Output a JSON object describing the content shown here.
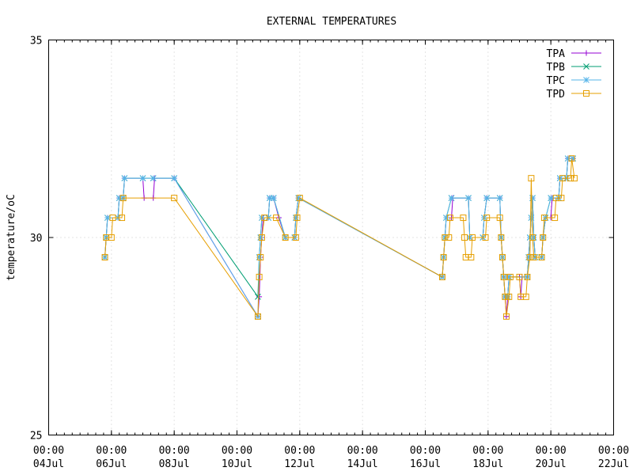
{
  "chart_data": {
    "type": "line",
    "title": "EXTERNAL TEMPERATURES",
    "ylabel": "temperature/oC",
    "xlabel": "",
    "ylim": [
      25,
      35
    ],
    "xlim": [
      "2024-07-04T00:00",
      "2024-07-22T00:00"
    ],
    "yticks": [
      {
        "value": 25,
        "label": "25"
      },
      {
        "value": 30,
        "label": "30"
      },
      {
        "value": 35,
        "label": "35"
      }
    ],
    "xticks": [
      {
        "value": "2024-07-04T00:00",
        "time": "00:00",
        "date": "04Jul"
      },
      {
        "value": "2024-07-06T00:00",
        "time": "00:00",
        "date": "06Jul"
      },
      {
        "value": "2024-07-08T00:00",
        "time": "00:00",
        "date": "08Jul"
      },
      {
        "value": "2024-07-10T00:00",
        "time": "00:00",
        "date": "10Jul"
      },
      {
        "value": "2024-07-12T00:00",
        "time": "00:00",
        "date": "12Jul"
      },
      {
        "value": "2024-07-14T00:00",
        "time": "00:00",
        "date": "14Jul"
      },
      {
        "value": "2024-07-16T00:00",
        "time": "00:00",
        "date": "16Jul"
      },
      {
        "value": "2024-07-18T00:00",
        "time": "00:00",
        "date": "18Jul"
      },
      {
        "value": "2024-07-20T00:00",
        "time": "00:00",
        "date": "20Jul"
      },
      {
        "value": "2024-07-22T00:00",
        "time": "00:00",
        "date": "22Jul"
      }
    ],
    "grid": true,
    "legend_position": "top-right",
    "series": [
      {
        "name": "TPA",
        "color": "#9400d3",
        "marker": "plus",
        "points": [
          [
            "2024-07-05T19:00",
            29.5
          ],
          [
            "2024-07-05T20:00",
            30.0
          ],
          [
            "2024-07-05T21:00",
            30.5
          ],
          [
            "2024-07-06T05:00",
            30.5
          ],
          [
            "2024-07-06T06:00",
            31.0
          ],
          [
            "2024-07-06T09:00",
            31.0
          ],
          [
            "2024-07-06T10:00",
            31.5
          ],
          [
            "2024-07-07T00:00",
            31.5
          ],
          [
            "2024-07-07T01:00",
            31.0
          ],
          [
            "2024-07-07T08:00",
            31.0
          ],
          [
            "2024-07-07T09:00",
            31.5
          ],
          [
            "2024-07-08T00:00",
            31.5
          ],
          [
            "2024-07-10T16:00",
            28.0
          ],
          [
            "2024-07-10T17:00",
            28.5
          ],
          [
            "2024-07-10T18:00",
            29.5
          ],
          [
            "2024-07-10T19:00",
            30.0
          ],
          [
            "2024-07-10T20:00",
            30.5
          ],
          [
            "2024-07-11T00:00",
            30.5
          ],
          [
            "2024-07-11T01:00",
            31.0
          ],
          [
            "2024-07-11T04:00",
            31.0
          ],
          [
            "2024-07-11T08:00",
            30.5
          ],
          [
            "2024-07-11T13:00",
            30.0
          ],
          [
            "2024-07-11T20:00",
            30.0
          ],
          [
            "2024-07-11T21:00",
            30.5
          ],
          [
            "2024-07-11T23:00",
            31.0
          ],
          [
            "2024-07-16T13:00",
            29.0
          ],
          [
            "2024-07-16T14:00",
            29.5
          ],
          [
            "2024-07-16T15:00",
            30.0
          ],
          [
            "2024-07-16T16:00",
            30.5
          ],
          [
            "2024-07-16T20:00",
            30.5
          ],
          [
            "2024-07-16T21:00",
            31.0
          ],
          [
            "2024-07-17T09:00",
            31.0
          ],
          [
            "2024-07-17T10:00",
            30.0
          ],
          [
            "2024-07-17T20:00",
            30.0
          ],
          [
            "2024-07-17T21:00",
            30.5
          ],
          [
            "2024-07-17T23:00",
            31.0
          ],
          [
            "2024-07-18T09:00",
            31.0
          ],
          [
            "2024-07-18T10:00",
            30.0
          ],
          [
            "2024-07-18T11:00",
            29.5
          ],
          [
            "2024-07-18T12:00",
            29.0
          ],
          [
            "2024-07-18T13:00",
            28.5
          ],
          [
            "2024-07-18T14:00",
            28.0
          ],
          [
            "2024-07-18T15:00",
            28.5
          ],
          [
            "2024-07-18T16:00",
            29.0
          ],
          [
            "2024-07-19T00:00",
            29.0
          ],
          [
            "2024-07-19T01:00",
            28.5
          ],
          [
            "2024-07-19T02:00",
            29.0
          ],
          [
            "2024-07-19T06:00",
            29.0
          ],
          [
            "2024-07-19T07:00",
            29.5
          ],
          [
            "2024-07-19T08:00",
            30.0
          ],
          [
            "2024-07-19T09:00",
            30.5
          ],
          [
            "2024-07-19T10:00",
            31.0
          ],
          [
            "2024-07-19T11:00",
            30.0
          ],
          [
            "2024-07-19T12:00",
            29.5
          ],
          [
            "2024-07-19T17:00",
            29.5
          ],
          [
            "2024-07-19T18:00",
            30.0
          ],
          [
            "2024-07-19T20:00",
            30.5
          ],
          [
            "2024-07-20T00:00",
            30.5
          ],
          [
            "2024-07-20T01:00",
            31.0
          ],
          [
            "2024-07-20T06:00",
            31.0
          ],
          [
            "2024-07-20T07:00",
            31.5
          ],
          [
            "2024-07-20T12:00",
            31.5
          ],
          [
            "2024-07-20T13:00",
            32.0
          ],
          [
            "2024-07-20T17:00",
            32.0
          ]
        ]
      },
      {
        "name": "TPB",
        "color": "#009e73",
        "marker": "cross",
        "points": [
          [
            "2024-07-05T19:00",
            29.5
          ],
          [
            "2024-07-05T20:00",
            30.0
          ],
          [
            "2024-07-05T21:00",
            30.5
          ],
          [
            "2024-07-06T05:00",
            30.5
          ],
          [
            "2024-07-06T06:00",
            31.0
          ],
          [
            "2024-07-06T09:00",
            31.0
          ],
          [
            "2024-07-06T10:00",
            31.5
          ],
          [
            "2024-07-07T00:00",
            31.5
          ],
          [
            "2024-07-07T08:00",
            31.5
          ],
          [
            "2024-07-08T00:00",
            31.5
          ],
          [
            "2024-07-10T16:00",
            28.5
          ],
          [
            "2024-07-10T17:00",
            29.5
          ],
          [
            "2024-07-10T18:00",
            30.0
          ],
          [
            "2024-07-10T19:00",
            30.5
          ],
          [
            "2024-07-11T00:00",
            30.5
          ],
          [
            "2024-07-11T01:00",
            31.0
          ],
          [
            "2024-07-11T04:00",
            31.0
          ],
          [
            "2024-07-11T13:00",
            30.0
          ],
          [
            "2024-07-11T20:00",
            30.0
          ],
          [
            "2024-07-11T21:00",
            30.5
          ],
          [
            "2024-07-11T23:00",
            31.0
          ],
          [
            "2024-07-16T13:00",
            29.0
          ],
          [
            "2024-07-16T14:00",
            29.5
          ],
          [
            "2024-07-16T15:00",
            30.0
          ],
          [
            "2024-07-16T16:00",
            30.5
          ],
          [
            "2024-07-16T20:00",
            31.0
          ],
          [
            "2024-07-17T09:00",
            31.0
          ],
          [
            "2024-07-17T10:00",
            30.0
          ],
          [
            "2024-07-17T20:00",
            30.0
          ],
          [
            "2024-07-17T21:00",
            30.5
          ],
          [
            "2024-07-17T23:00",
            31.0
          ],
          [
            "2024-07-18T09:00",
            31.0
          ],
          [
            "2024-07-18T10:00",
            30.0
          ],
          [
            "2024-07-18T11:00",
            29.5
          ],
          [
            "2024-07-18T12:00",
            29.0
          ],
          [
            "2024-07-18T13:00",
            28.5
          ],
          [
            "2024-07-18T15:00",
            28.5
          ],
          [
            "2024-07-18T16:00",
            29.0
          ],
          [
            "2024-07-19T06:00",
            29.0
          ],
          [
            "2024-07-19T07:00",
            29.5
          ],
          [
            "2024-07-19T08:00",
            30.0
          ],
          [
            "2024-07-19T09:00",
            30.5
          ],
          [
            "2024-07-19T10:00",
            31.0
          ],
          [
            "2024-07-19T11:00",
            30.0
          ],
          [
            "2024-07-19T12:00",
            29.5
          ],
          [
            "2024-07-19T17:00",
            29.5
          ],
          [
            "2024-07-19T18:00",
            30.0
          ],
          [
            "2024-07-19T20:00",
            30.5
          ],
          [
            "2024-07-20T00:00",
            31.0
          ],
          [
            "2024-07-20T06:00",
            31.0
          ],
          [
            "2024-07-20T07:00",
            31.5
          ],
          [
            "2024-07-20T12:00",
            31.5
          ],
          [
            "2024-07-20T13:00",
            32.0
          ],
          [
            "2024-07-20T17:00",
            32.0
          ]
        ]
      },
      {
        "name": "TPC",
        "color": "#56b4e9",
        "marker": "star",
        "points": [
          [
            "2024-07-05T19:00",
            29.5
          ],
          [
            "2024-07-05T20:00",
            30.0
          ],
          [
            "2024-07-05T21:00",
            30.5
          ],
          [
            "2024-07-06T05:00",
            30.5
          ],
          [
            "2024-07-06T06:00",
            31.0
          ],
          [
            "2024-07-06T09:00",
            31.0
          ],
          [
            "2024-07-06T10:00",
            31.5
          ],
          [
            "2024-07-07T00:00",
            31.5
          ],
          [
            "2024-07-07T08:00",
            31.5
          ],
          [
            "2024-07-08T00:00",
            31.5
          ],
          [
            "2024-07-10T16:00",
            28.0
          ],
          [
            "2024-07-10T17:00",
            29.5
          ],
          [
            "2024-07-10T18:00",
            30.0
          ],
          [
            "2024-07-10T19:00",
            30.5
          ],
          [
            "2024-07-11T00:00",
            30.5
          ],
          [
            "2024-07-11T01:00",
            31.0
          ],
          [
            "2024-07-11T04:00",
            31.0
          ],
          [
            "2024-07-11T13:00",
            30.0
          ],
          [
            "2024-07-11T20:00",
            30.0
          ],
          [
            "2024-07-11T21:00",
            30.5
          ],
          [
            "2024-07-11T23:00",
            31.0
          ],
          [
            "2024-07-16T13:00",
            29.0
          ],
          [
            "2024-07-16T14:00",
            29.5
          ],
          [
            "2024-07-16T15:00",
            30.0
          ],
          [
            "2024-07-16T16:00",
            30.5
          ],
          [
            "2024-07-16T20:00",
            31.0
          ],
          [
            "2024-07-17T09:00",
            31.0
          ],
          [
            "2024-07-17T10:00",
            30.0
          ],
          [
            "2024-07-17T20:00",
            30.0
          ],
          [
            "2024-07-17T21:00",
            30.5
          ],
          [
            "2024-07-17T23:00",
            31.0
          ],
          [
            "2024-07-18T09:00",
            31.0
          ],
          [
            "2024-07-18T10:00",
            30.0
          ],
          [
            "2024-07-18T11:00",
            29.5
          ],
          [
            "2024-07-18T12:00",
            29.0
          ],
          [
            "2024-07-18T13:00",
            28.5
          ],
          [
            "2024-07-18T15:00",
            28.5
          ],
          [
            "2024-07-18T16:00",
            29.0
          ],
          [
            "2024-07-19T06:00",
            29.0
          ],
          [
            "2024-07-19T07:00",
            29.5
          ],
          [
            "2024-07-19T08:00",
            30.0
          ],
          [
            "2024-07-19T09:00",
            30.5
          ],
          [
            "2024-07-19T10:00",
            31.0
          ],
          [
            "2024-07-19T11:00",
            30.0
          ],
          [
            "2024-07-19T12:00",
            29.5
          ],
          [
            "2024-07-19T17:00",
            29.5
          ],
          [
            "2024-07-19T18:00",
            30.0
          ],
          [
            "2024-07-19T20:00",
            30.5
          ],
          [
            "2024-07-20T00:00",
            31.0
          ],
          [
            "2024-07-20T06:00",
            31.0
          ],
          [
            "2024-07-20T07:00",
            31.5
          ],
          [
            "2024-07-20T12:00",
            31.5
          ],
          [
            "2024-07-20T13:00",
            32.0
          ],
          [
            "2024-07-20T17:00",
            32.0
          ]
        ]
      },
      {
        "name": "TPD",
        "color": "#e69f00",
        "marker": "square",
        "points": [
          [
            "2024-07-05T19:00",
            29.5
          ],
          [
            "2024-07-05T20:00",
            30.0
          ],
          [
            "2024-07-06T00:00",
            30.0
          ],
          [
            "2024-07-06T01:00",
            30.5
          ],
          [
            "2024-07-06T08:00",
            30.5
          ],
          [
            "2024-07-06T09:00",
            31.0
          ],
          [
            "2024-07-08T00:00",
            31.0
          ],
          [
            "2024-07-10T16:00",
            28.0
          ],
          [
            "2024-07-10T17:00",
            29.0
          ],
          [
            "2024-07-10T18:00",
            29.5
          ],
          [
            "2024-07-10T19:00",
            30.0
          ],
          [
            "2024-07-10T21:00",
            30.5
          ],
          [
            "2024-07-11T06:00",
            30.5
          ],
          [
            "2024-07-11T13:00",
            30.0
          ],
          [
            "2024-07-11T21:00",
            30.0
          ],
          [
            "2024-07-11T22:00",
            30.5
          ],
          [
            "2024-07-12T00:00",
            31.0
          ],
          [
            "2024-07-16T13:00",
            29.0
          ],
          [
            "2024-07-16T14:00",
            29.5
          ],
          [
            "2024-07-16T15:00",
            30.0
          ],
          [
            "2024-07-16T18:00",
            30.0
          ],
          [
            "2024-07-16T19:00",
            30.5
          ],
          [
            "2024-07-17T05:00",
            30.5
          ],
          [
            "2024-07-17T06:00",
            30.0
          ],
          [
            "2024-07-17T07:00",
            29.5
          ],
          [
            "2024-07-17T11:00",
            29.5
          ],
          [
            "2024-07-17T12:00",
            30.0
          ],
          [
            "2024-07-17T22:00",
            30.0
          ],
          [
            "2024-07-17T23:00",
            30.5
          ],
          [
            "2024-07-18T09:00",
            30.5
          ],
          [
            "2024-07-18T10:00",
            30.0
          ],
          [
            "2024-07-18T11:00",
            29.5
          ],
          [
            "2024-07-18T12:00",
            29.0
          ],
          [
            "2024-07-18T13:00",
            28.5
          ],
          [
            "2024-07-18T14:00",
            28.0
          ],
          [
            "2024-07-18T16:00",
            28.5
          ],
          [
            "2024-07-18T17:00",
            29.0
          ],
          [
            "2024-07-19T00:00",
            29.0
          ],
          [
            "2024-07-19T01:00",
            28.5
          ],
          [
            "2024-07-19T05:00",
            28.5
          ],
          [
            "2024-07-19T06:00",
            29.0
          ],
          [
            "2024-07-19T08:00",
            29.5
          ],
          [
            "2024-07-19T09:00",
            31.5
          ],
          [
            "2024-07-19T10:00",
            30.0
          ],
          [
            "2024-07-19T11:00",
            29.5
          ],
          [
            "2024-07-19T17:00",
            29.5
          ],
          [
            "2024-07-19T18:00",
            30.0
          ],
          [
            "2024-07-19T19:00",
            30.5
          ],
          [
            "2024-07-20T03:00",
            30.5
          ],
          [
            "2024-07-20T04:00",
            31.0
          ],
          [
            "2024-07-20T08:00",
            31.0
          ],
          [
            "2024-07-20T09:00",
            31.5
          ],
          [
            "2024-07-20T15:00",
            31.5
          ],
          [
            "2024-07-20T16:00",
            32.0
          ],
          [
            "2024-07-20T18:00",
            31.5
          ]
        ]
      }
    ]
  }
}
